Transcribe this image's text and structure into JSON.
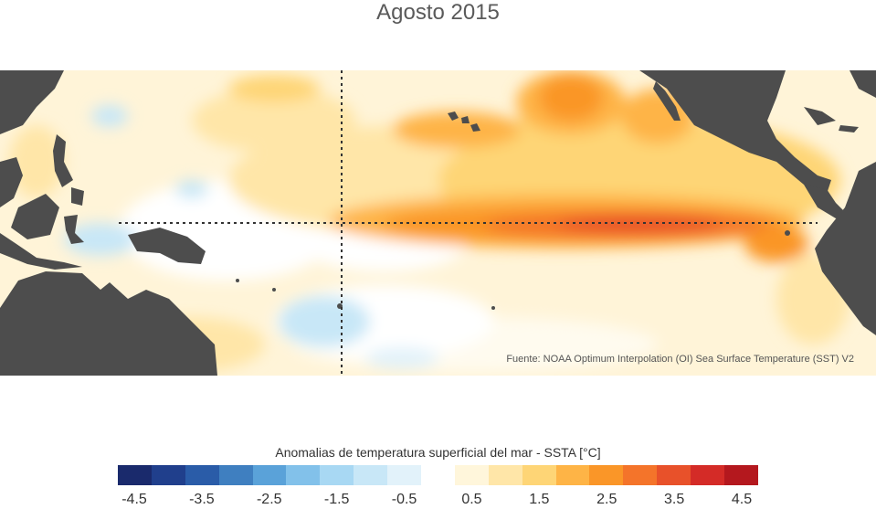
{
  "title": "Agosto 2015",
  "source_note": "Fuente: NOAA Optimum Interpolation (OI) Sea Surface Temperature (SST) V2",
  "legend": {
    "title": "Anomalias de temperatura superficial del mar - SSTA  [°C]",
    "colors": [
      "#1a2a6c",
      "#203f8c",
      "#2a5ca8",
      "#3f7fc0",
      "#5aa2d9",
      "#82c1ea",
      "#a8d8f3",
      "#c8e7f7",
      "#e2f2fa",
      "#ffffff",
      "#fff6db",
      "#ffe6a8",
      "#fed576",
      "#feb446",
      "#fa9628",
      "#f4742a",
      "#e8512a",
      "#d42b27",
      "#b4181e"
    ],
    "ticks": [
      "-4.5",
      "-3.5",
      "-2.5",
      "-1.5",
      "-0.5",
      "0.5",
      "1.5",
      "2.5",
      "3.5",
      "4.5"
    ]
  }
}
